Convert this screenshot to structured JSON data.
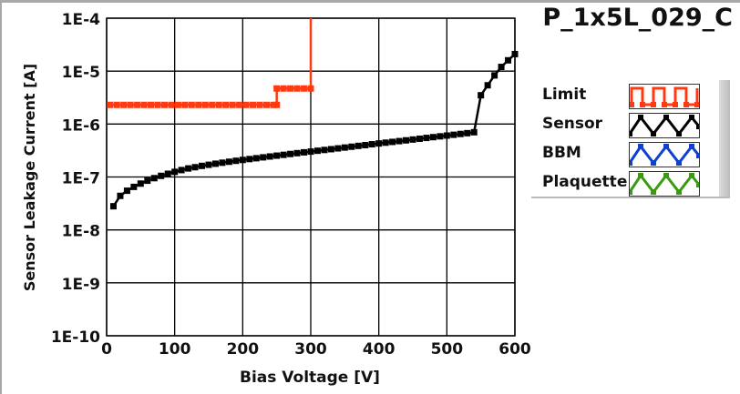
{
  "title": "P_1x5L_029_C",
  "legend": [
    {
      "label": "Limit",
      "color": "#ff3a10",
      "style": "square-wave"
    },
    {
      "label": "Sensor",
      "color": "#000000",
      "style": "zigzag"
    },
    {
      "label": "BBM",
      "color": "#1040d0",
      "style": "zigzag"
    },
    {
      "label": "Plaquette",
      "color": "#3a9a10",
      "style": "zigzag"
    }
  ],
  "chart_data": {
    "type": "line",
    "title": "P_1x5L_029_C",
    "xlabel": "Bias Voltage [V]",
    "ylabel": "Sensor Leakage Current [A]",
    "xlim": [
      0,
      600
    ],
    "ylim": [
      1e-10,
      0.0001
    ],
    "yscale": "log",
    "grid": true,
    "legend_position": "right",
    "xticks": [
      "0",
      "100",
      "200",
      "300",
      "400",
      "500",
      "600"
    ],
    "yticks": [
      "1E-10",
      "1E-9",
      "1E-8",
      "1E-7",
      "1E-6",
      "1E-5",
      "1E-4"
    ],
    "series": [
      {
        "name": "Limit",
        "color": "#ff3a10",
        "x": [
          5,
          15,
          25,
          35,
          45,
          55,
          65,
          75,
          85,
          95,
          105,
          115,
          125,
          135,
          145,
          155,
          165,
          175,
          185,
          195,
          205,
          215,
          225,
          235,
          245,
          250,
          250,
          260,
          270,
          280,
          290,
          300,
          300
        ],
        "y": [
          2.3e-06,
          2.3e-06,
          2.3e-06,
          2.3e-06,
          2.3e-06,
          2.3e-06,
          2.3e-06,
          2.3e-06,
          2.3e-06,
          2.3e-06,
          2.3e-06,
          2.3e-06,
          2.3e-06,
          2.3e-06,
          2.3e-06,
          2.3e-06,
          2.3e-06,
          2.3e-06,
          2.3e-06,
          2.3e-06,
          2.3e-06,
          2.3e-06,
          2.3e-06,
          2.3e-06,
          2.3e-06,
          2.3e-06,
          4.7e-06,
          4.7e-06,
          4.7e-06,
          4.7e-06,
          4.7e-06,
          4.7e-06,
          0.0001
        ]
      },
      {
        "name": "Sensor",
        "color": "#000000",
        "x": [
          10,
          20,
          30,
          40,
          50,
          60,
          70,
          80,
          90,
          100,
          110,
          120,
          130,
          140,
          150,
          160,
          170,
          180,
          190,
          200,
          210,
          220,
          230,
          240,
          250,
          260,
          270,
          280,
          290,
          300,
          310,
          320,
          330,
          340,
          350,
          360,
          370,
          380,
          390,
          400,
          410,
          420,
          430,
          440,
          450,
          460,
          470,
          480,
          490,
          500,
          510,
          520,
          530,
          540,
          550,
          560,
          570,
          580,
          590,
          600
        ],
        "y": [
          2.8e-08,
          4.4e-08,
          5.5e-08,
          6.5e-08,
          7.5e-08,
          8.5e-08,
          9.5e-08,
          1.05e-07,
          1.15e-07,
          1.25e-07,
          1.35e-07,
          1.45e-07,
          1.53e-07,
          1.62e-07,
          1.7e-07,
          1.78e-07,
          1.86e-07,
          1.94e-07,
          2.02e-07,
          2.1e-07,
          2.18e-07,
          2.26e-07,
          2.35e-07,
          2.44e-07,
          2.53e-07,
          2.62e-07,
          2.72e-07,
          2.82e-07,
          2.92e-07,
          3.02e-07,
          3.13e-07,
          3.24e-07,
          3.35e-07,
          3.47e-07,
          3.6e-07,
          3.73e-07,
          3.87e-07,
          4e-07,
          4.15e-07,
          4.3e-07,
          4.45e-07,
          4.6e-07,
          4.76e-07,
          4.92e-07,
          5.1e-07,
          5.28e-07,
          5.47e-07,
          5.66e-07,
          5.86e-07,
          6.06e-07,
          6.27e-07,
          6.5e-07,
          6.73e-07,
          7e-07,
          3.5e-06,
          5.4e-06,
          8.3e-06,
          1.2e-05,
          1.6e-05,
          2.1e-05
        ]
      },
      {
        "name": "BBM",
        "color": "#1040d0",
        "x": [],
        "y": []
      },
      {
        "name": "Plaquette",
        "color": "#3a9a10",
        "x": [],
        "y": []
      }
    ]
  }
}
